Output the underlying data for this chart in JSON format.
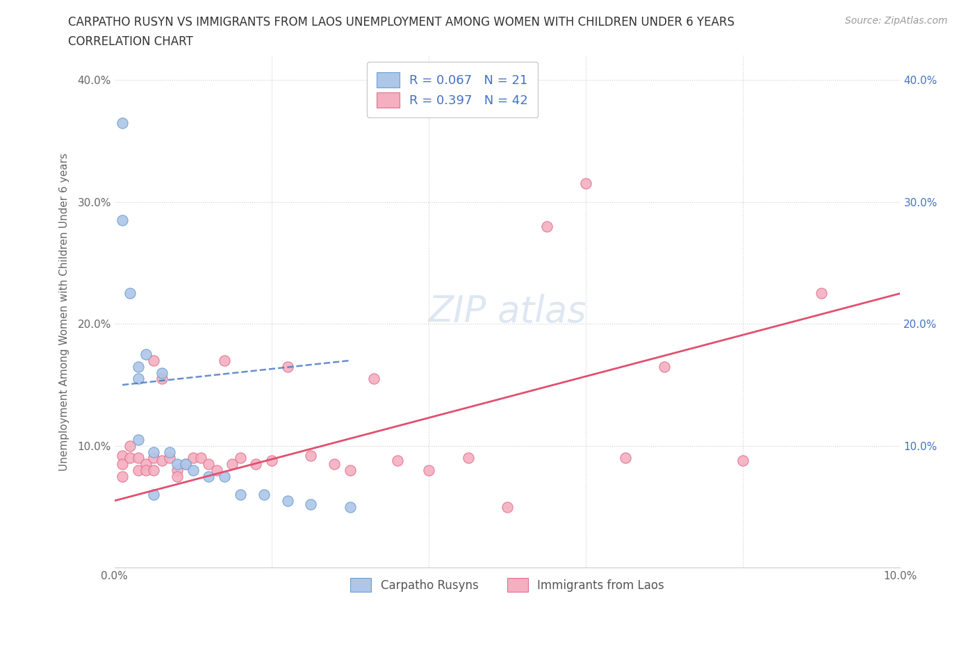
{
  "title_line1": "CARPATHO RUSYN VS IMMIGRANTS FROM LAOS UNEMPLOYMENT AMONG WOMEN WITH CHILDREN UNDER 6 YEARS",
  "title_line2": "CORRELATION CHART",
  "source": "Source: ZipAtlas.com",
  "ylabel": "Unemployment Among Women with Children Under 6 years",
  "xlim": [
    0.0,
    0.1
  ],
  "ylim": [
    0.0,
    0.42
  ],
  "xticks": [
    0.0,
    0.02,
    0.04,
    0.06,
    0.08,
    0.1
  ],
  "yticks": [
    0.0,
    0.1,
    0.2,
    0.3,
    0.4
  ],
  "xtick_labels": [
    "0.0%",
    "",
    "",
    "",
    "",
    "10.0%"
  ],
  "ytick_labels_left": [
    "",
    "10.0%",
    "20.0%",
    "30.0%",
    "40.0%"
  ],
  "ytick_labels_right": [
    "",
    "10.0%",
    "20.0%",
    "30.0%",
    "40.0%"
  ],
  "background_color": "#ffffff",
  "grid_color": "#cccccc",
  "title_color": "#333333",
  "legend_text_color": "#4472c4",
  "series1_color": "#aec6e8",
  "series2_color": "#f4afc0",
  "series1_edge_color": "#6aa0d0",
  "series2_edge_color": "#e07090",
  "line1_color": "#4472c4",
  "line2_color": "#e05070",
  "line1_dash": "dashed",
  "line2_dash": "solid",
  "legend1_label": "R = 0.067   N = 21",
  "legend2_label": "R = 0.397   N = 42",
  "legend_label1": "Carpatho Rusyns",
  "legend_label2": "Immigrants from Laos",
  "carpatho_x": [
    0.001,
    0.001,
    0.002,
    0.003,
    0.003,
    0.003,
    0.004,
    0.005,
    0.005,
    0.006,
    0.007,
    0.008,
    0.009,
    0.01,
    0.012,
    0.014,
    0.016,
    0.019,
    0.022,
    0.025,
    0.03
  ],
  "carpatho_y": [
    0.365,
    0.285,
    0.225,
    0.165,
    0.105,
    0.155,
    0.175,
    0.095,
    0.06,
    0.16,
    0.095,
    0.085,
    0.085,
    0.08,
    0.075,
    0.075,
    0.06,
    0.06,
    0.055,
    0.052,
    0.05
  ],
  "laos_x": [
    0.001,
    0.001,
    0.001,
    0.002,
    0.002,
    0.003,
    0.003,
    0.004,
    0.004,
    0.005,
    0.005,
    0.005,
    0.006,
    0.006,
    0.007,
    0.008,
    0.008,
    0.009,
    0.01,
    0.011,
    0.012,
    0.013,
    0.014,
    0.015,
    0.016,
    0.018,
    0.02,
    0.022,
    0.025,
    0.028,
    0.03,
    0.033,
    0.036,
    0.04,
    0.045,
    0.05,
    0.055,
    0.06,
    0.065,
    0.07,
    0.08,
    0.09
  ],
  "laos_y": [
    0.092,
    0.085,
    0.075,
    0.1,
    0.09,
    0.09,
    0.08,
    0.085,
    0.08,
    0.17,
    0.09,
    0.08,
    0.155,
    0.088,
    0.09,
    0.08,
    0.075,
    0.085,
    0.09,
    0.09,
    0.085,
    0.08,
    0.17,
    0.085,
    0.09,
    0.085,
    0.088,
    0.165,
    0.092,
    0.085,
    0.08,
    0.155,
    0.088,
    0.08,
    0.09,
    0.05,
    0.28,
    0.315,
    0.09,
    0.165,
    0.088,
    0.225
  ],
  "R1": 0.067,
  "N1": 21,
  "R2": 0.397,
  "N2": 42,
  "blue_line_x": [
    0.001,
    0.03
  ],
  "blue_line_y": [
    0.15,
    0.17
  ],
  "pink_line_x": [
    0.0,
    0.1
  ],
  "pink_line_y": [
    0.055,
    0.225
  ]
}
